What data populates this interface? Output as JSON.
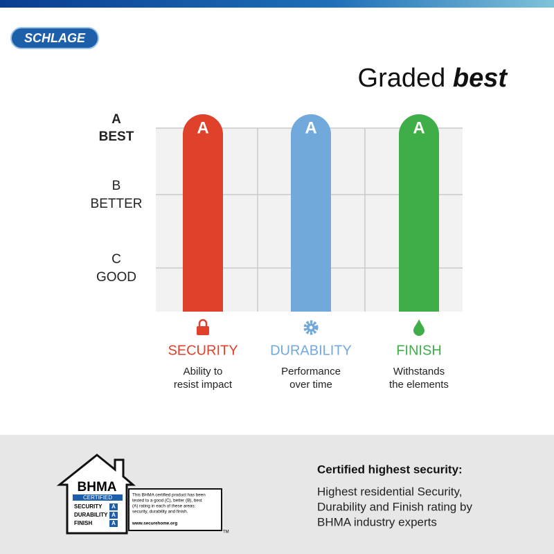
{
  "logo": "SCHLAGE",
  "title": {
    "regular": "Graded",
    "bold": "best"
  },
  "grades": [
    {
      "letter": "A",
      "label": "BEST"
    },
    {
      "letter": "B",
      "label": "BETTER"
    },
    {
      "letter": "C",
      "label": "GOOD"
    }
  ],
  "columns": [
    {
      "grade": "A",
      "name": "SECURITY",
      "color": "#e0412a",
      "description": [
        "Ability to",
        "resist impact"
      ]
    },
    {
      "grade": "A",
      "name": "DURABILITY",
      "color": "#72a9dc",
      "description": [
        "Performance",
        "over time"
      ]
    },
    {
      "grade": "A",
      "name": "FINISH",
      "color": "#3fae49",
      "description": [
        "Withstands",
        "the elements"
      ]
    }
  ],
  "footer": {
    "badge": {
      "title": "BHMA",
      "subtitle": "CERTIFIED",
      "ratings": [
        {
          "name": "SECURITY",
          "grade": "A"
        },
        {
          "name": "DURABILITY",
          "grade": "A"
        },
        {
          "name": "FINISH",
          "grade": "A"
        }
      ],
      "note": [
        "This BHMA certified product has been",
        "tested to a good (C), better (B), best",
        "(A) rating in each of these areas:",
        "security, durability and finish."
      ],
      "url": "www.securehome.org",
      "tm": "TM"
    },
    "heading": "Certified highest security:",
    "body": [
      "Highest residential Security,",
      "Durability and Finish rating by",
      "BHMA industry experts"
    ]
  }
}
